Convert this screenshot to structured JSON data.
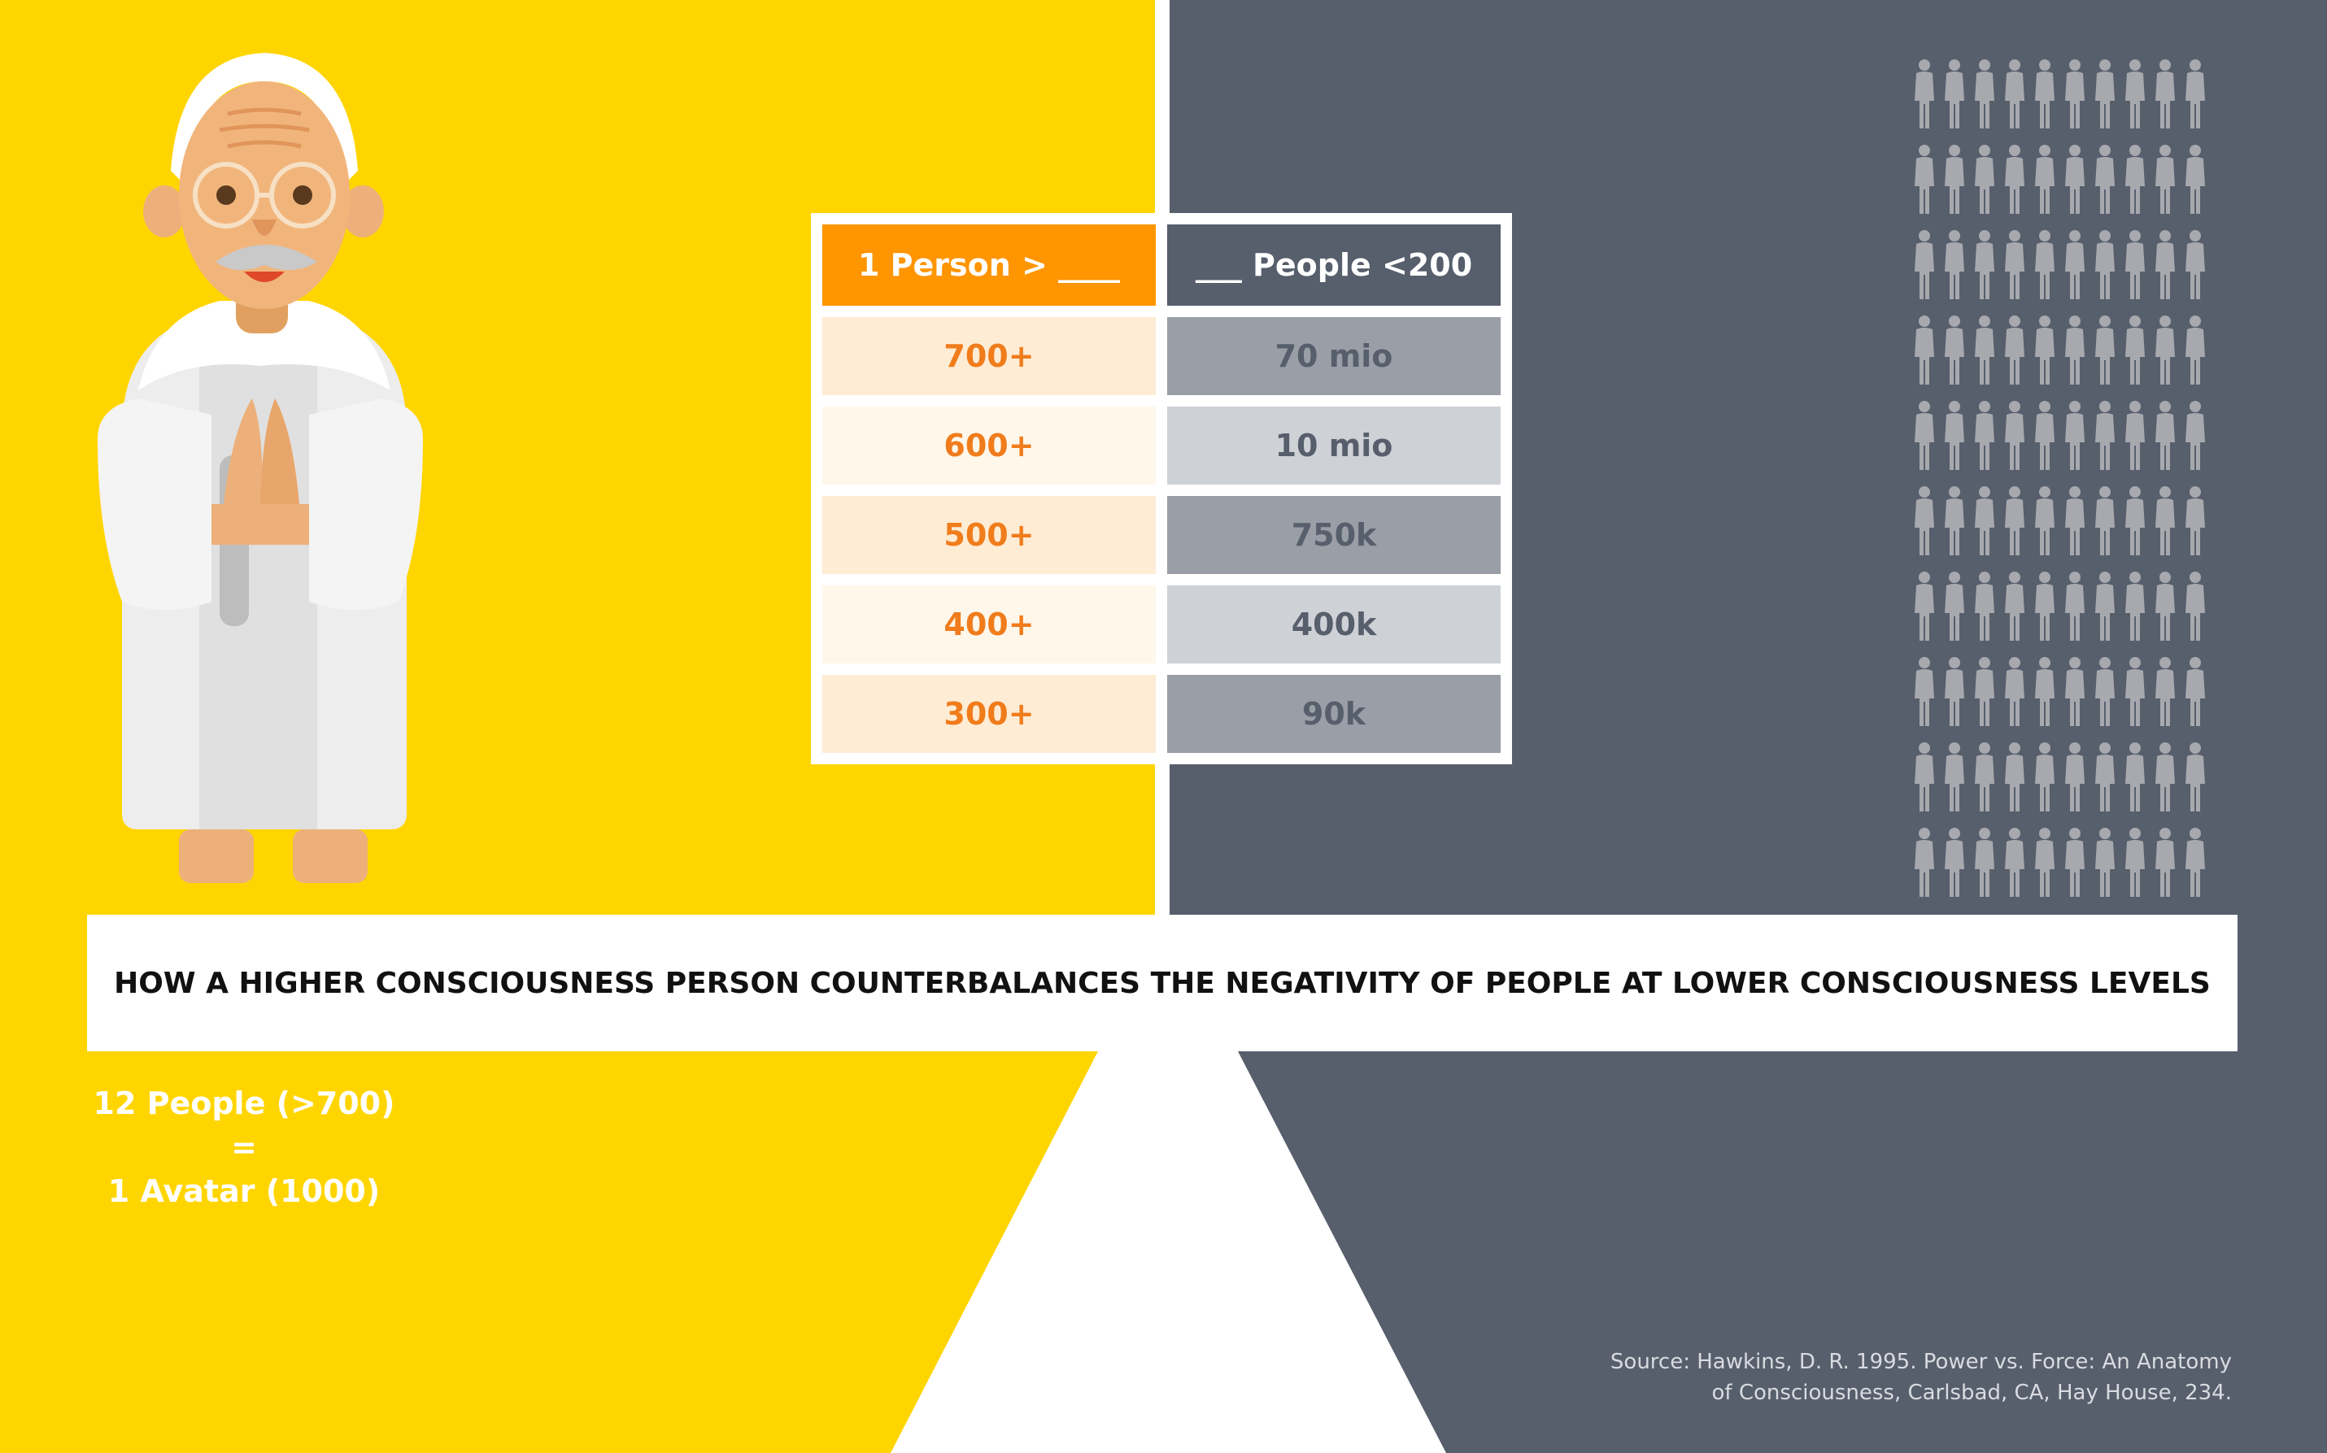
{
  "table": {
    "header_left": "1 Person > ____",
    "header_right": "___ People <200",
    "rows": [
      {
        "left": "700+",
        "right": "70 mio"
      },
      {
        "left": "600+",
        "right": "10 mio"
      },
      {
        "left": "500+",
        "right": "750k"
      },
      {
        "left": "400+",
        "right": "400k"
      },
      {
        "left": "300+",
        "right": "90k"
      }
    ]
  },
  "banner": {
    "title": "HOW A HIGHER CONSCIOUSNESS PERSON COUNTERBALANCES THE NEGATIVITY OF PEOPLE AT LOWER CONSCIOUSNESS LEVELS"
  },
  "equivalence": {
    "line1": "12 People (>700)",
    "line2": "=",
    "line3": "1 Avatar (1000)"
  },
  "source": {
    "line1": "Source: Hawkins, D. R. 1995. Power vs. Force: An Anatomy",
    "line2": "of Consciousness, Carlsbad, CA, Hay House, 234."
  },
  "colors": {
    "left_panel": "#FFD500",
    "right_panel": "#575E6C",
    "accent_orange": "#FF9500",
    "value_orange": "#F07C1C"
  },
  "illustrations": {
    "left_figure": "sage-figure-icon",
    "right_crowd": "crowd-people-icon"
  }
}
